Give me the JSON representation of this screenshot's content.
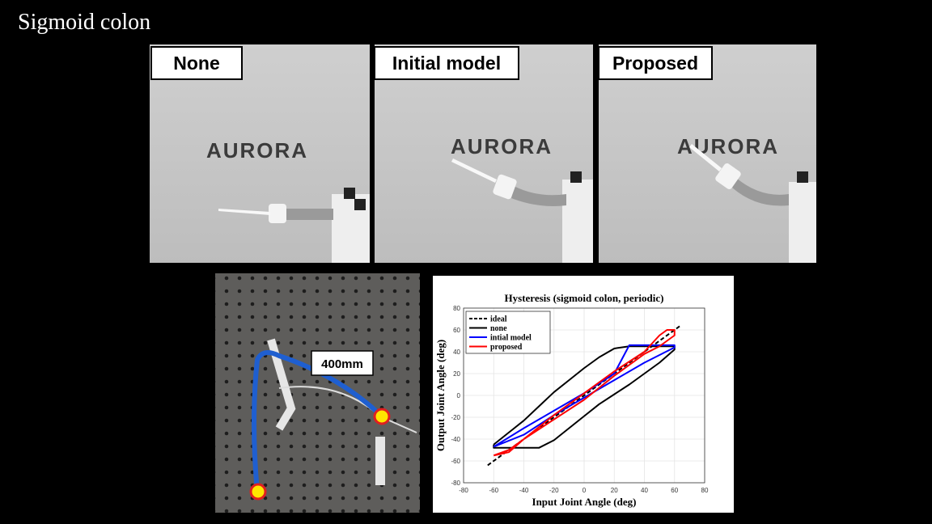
{
  "slide_title": "Sigmoid colon",
  "panels": [
    {
      "label": "None"
    },
    {
      "label": "Initial model"
    },
    {
      "label": "Proposed"
    }
  ],
  "photo_logo": "AURORA",
  "setup_photo": {
    "label": "400mm"
  },
  "chart_data": {
    "type": "line",
    "title": "Hysteresis (sigmoid colon, periodic)",
    "xlabel": "Input Joint Angle (deg)",
    "ylabel": "Output Joint Angle (deg)",
    "xlim": [
      -80,
      80
    ],
    "ylim": [
      -80,
      80
    ],
    "xticks": [
      -80,
      -60,
      -40,
      -20,
      0,
      20,
      40,
      60,
      80
    ],
    "yticks": [
      -80,
      -60,
      -40,
      -20,
      0,
      20,
      40,
      60,
      80
    ],
    "grid": true,
    "legend": "upper left",
    "series": [
      {
        "name": "ideal",
        "color": "#000000",
        "dashed": true,
        "x": [
          -64,
          64
        ],
        "values": [
          -64,
          64
        ]
      },
      {
        "name": "none",
        "color": "#000000",
        "x": [
          -60,
          -50,
          -40,
          -30,
          -20,
          -10,
          0,
          10,
          20,
          30,
          40,
          50,
          60,
          60,
          50,
          40,
          30,
          20,
          10,
          0,
          -10,
          -20,
          -30,
          -40,
          -50,
          -60,
          -60
        ],
        "values": [
          -45,
          -34,
          -23,
          -10,
          3,
          14,
          25,
          35,
          43,
          45,
          45,
          45,
          45,
          42,
          30,
          20,
          10,
          1,
          -8,
          -19,
          -30,
          -41,
          -48,
          -48,
          -48,
          -48,
          -45
        ]
      },
      {
        "name": "intial model",
        "color": "#0000ff",
        "x": [
          -60,
          -40,
          -20,
          0,
          20,
          30,
          60,
          60,
          40,
          20,
          0,
          -20,
          -40,
          -60
        ],
        "values": [
          -47,
          -30,
          -14,
          2,
          20,
          46,
          46,
          44,
          30,
          14,
          -2,
          -18,
          -36,
          -47
        ]
      },
      {
        "name": "proposed",
        "color": "#ff0000",
        "x": [
          -60,
          -50,
          -40,
          -20,
          0,
          20,
          40,
          50,
          55,
          60,
          60,
          50,
          40,
          20,
          0,
          -20,
          -40,
          -50,
          -60
        ],
        "values": [
          -55,
          -52,
          -40,
          -18,
          2,
          22,
          40,
          55,
          60,
          60,
          55,
          45,
          38,
          18,
          -4,
          -22,
          -40,
          -50,
          -55
        ]
      }
    ]
  }
}
